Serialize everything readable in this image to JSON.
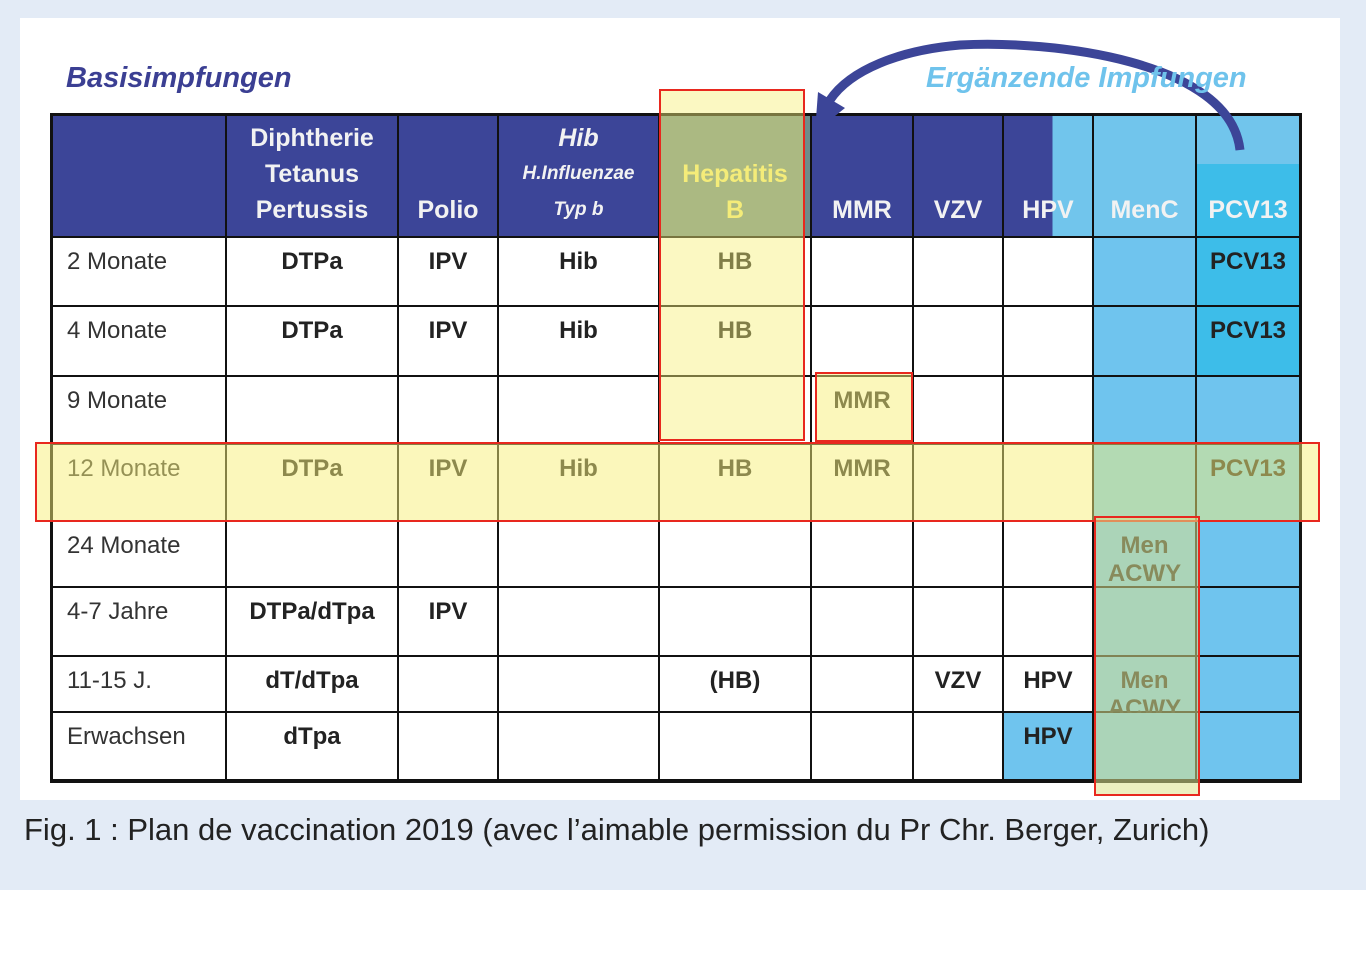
{
  "titles": {
    "basis": "Basisimpfungen",
    "ergaenzend": "Ergänzende Impfungen"
  },
  "header": [
    "",
    "Diphtherie Tetanus Pertussis",
    "Polio",
    "Hib H.Influenzae Typ b",
    "Hepatitis B",
    "MMR",
    "VZV",
    "HPV",
    "MenC",
    "PCV13"
  ],
  "header_lines": [
    [
      ""
    ],
    [
      "Diphtherie",
      "Tetanus",
      "Pertussis"
    ],
    [
      "Polio"
    ],
    [
      "Hib",
      "H.Influenzae",
      "Typ b"
    ],
    [
      "Hepatitis",
      "B"
    ],
    [
      "MMR"
    ],
    [
      "VZV"
    ],
    [
      "HPV"
    ],
    [
      "MenC"
    ],
    [
      "PCV13"
    ]
  ],
  "rows": [
    [
      "2 Monate",
      "DTPa",
      "IPV",
      "Hib",
      "HB",
      "",
      "",
      "",
      "",
      "PCV13"
    ],
    [
      "4 Monate",
      "DTPa",
      "IPV",
      "Hib",
      "HB",
      "",
      "",
      "",
      "",
      "PCV13"
    ],
    [
      "9 Monate",
      "",
      "",
      "",
      "",
      "MMR",
      "",
      "",
      "",
      ""
    ],
    [
      "12 Monate",
      "DTPa",
      "IPV",
      "Hib",
      "HB",
      "MMR",
      "",
      "",
      "",
      "PCV13"
    ],
    [
      "24 Monate",
      "",
      "",
      "",
      "",
      "",
      "",
      "",
      "Men ACWY",
      ""
    ],
    [
      "4-7 Jahre",
      "DTPa/dTpa",
      "IPV",
      "",
      "",
      "",
      "",
      "",
      "",
      ""
    ],
    [
      "11-15 J.",
      "dT/dTpa",
      "",
      "",
      "(HB)",
      "",
      "VZV",
      "HPV",
      "Men ACWY",
      ""
    ],
    [
      "Erwachsen",
      "dTpa",
      "",
      "",
      "",
      "",
      "",
      "HPV",
      "",
      ""
    ]
  ],
  "caption": "Fig. 1 : Plan de vaccination 2019 (avec l’aimable permission du Pr Chr. Berger, Zurich)",
  "colors": {
    "dark_blue": "#3c4598",
    "light_blue": "#6fc4ee",
    "highlight_red": "#e8281e",
    "highlight_yellow": "#f7f08c"
  }
}
